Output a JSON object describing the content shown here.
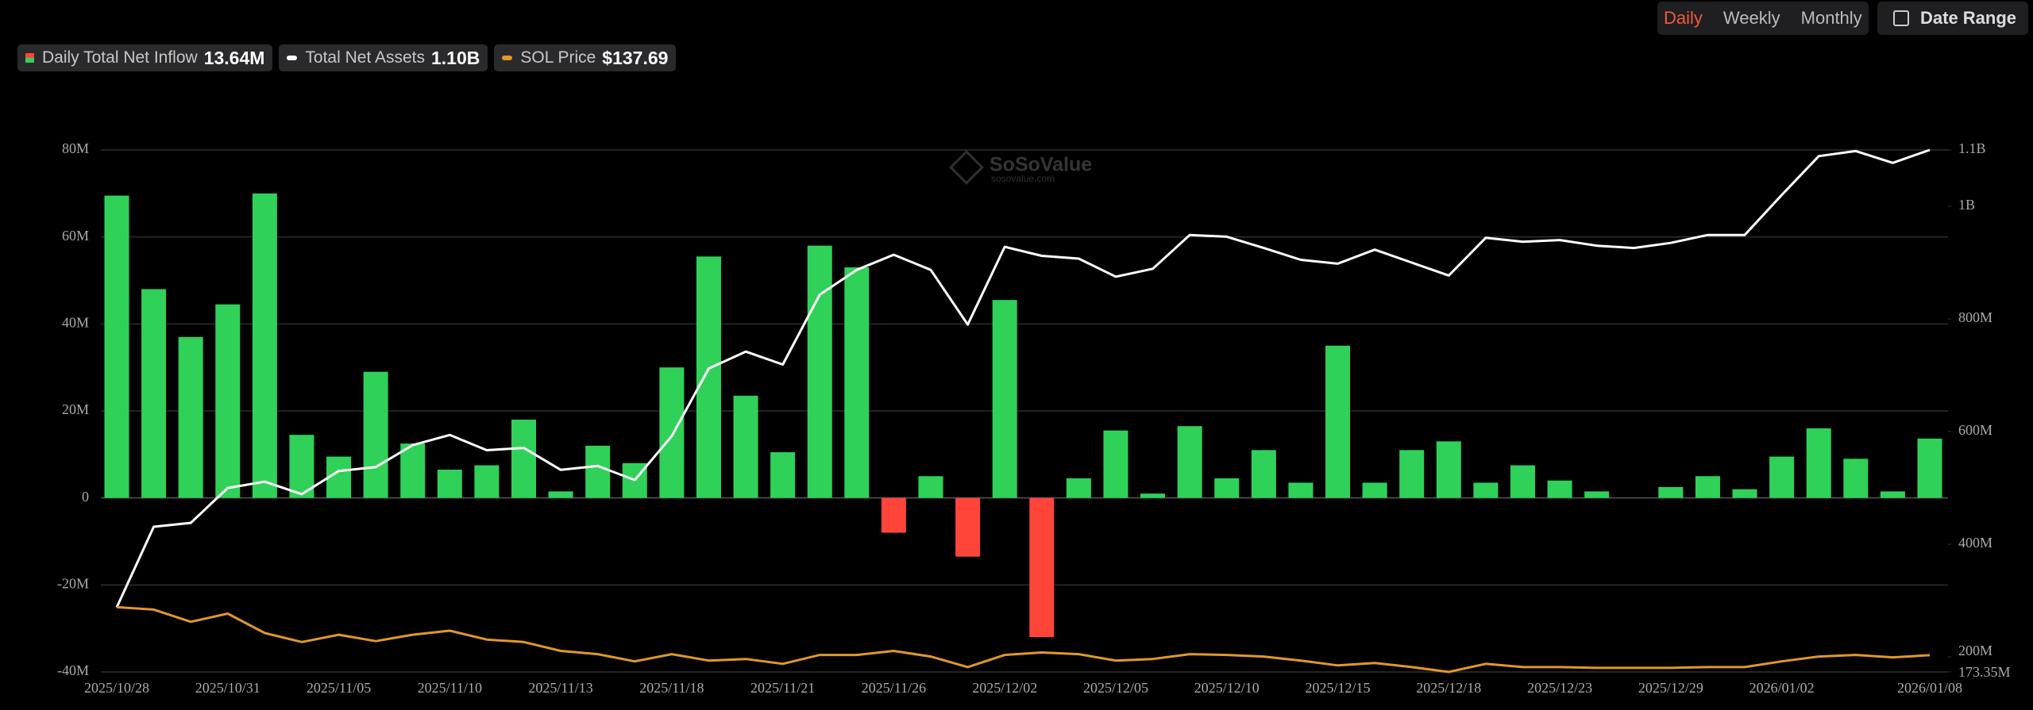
{
  "controls": {
    "periods": [
      "Daily",
      "Weekly",
      "Monthly"
    ],
    "active_period": 0,
    "date_range": "Date Range"
  },
  "watermark": {
    "brand": "SoSoValue",
    "site": "sosovalue.com"
  },
  "chart_data": {
    "type": "bar",
    "categories": [
      "2025/10/28",
      null,
      null,
      "2025/10/31",
      null,
      null,
      "2025/11/05",
      null,
      null,
      "2025/11/10",
      null,
      null,
      "2025/11/13",
      null,
      null,
      "2025/11/18",
      null,
      null,
      "2025/11/21",
      null,
      null,
      "2025/11/26",
      null,
      null,
      "2025/12/02",
      null,
      null,
      "2025/12/05",
      null,
      null,
      "2025/12/10",
      null,
      null,
      "2025/12/15",
      null,
      null,
      "2025/12/18",
      null,
      null,
      "2025/12/23",
      null,
      null,
      "2025/12/29",
      null,
      null,
      "2026/01/02",
      null,
      null,
      null,
      "2026/01/08"
    ],
    "series": [
      {
        "name": "Daily Total Net Inflow",
        "summary_label": "13.64M",
        "color": "#30d158",
        "negative_color": "#ff453a",
        "values": [
          69.5,
          48,
          37,
          44.5,
          70,
          14.5,
          9.5,
          29,
          12.5,
          6.5,
          7.5,
          18,
          1.5,
          12,
          8,
          30,
          55.5,
          23.5,
          10.5,
          58,
          53,
          -8,
          5,
          -13.5,
          45.5,
          -32,
          4.5,
          15.5,
          1,
          16.5,
          4.5,
          11,
          3.5,
          35,
          3.5,
          11,
          13,
          3.5,
          7.5,
          4,
          1.5,
          0,
          2.5,
          5,
          2,
          9.5,
          16,
          9,
          1.5,
          13.64
        ]
      },
      {
        "name": "Total Net Assets",
        "summary_label": "1.10B",
        "type": "line",
        "axis": "y2",
        "color": "#ffffff",
        "values": [
          288,
          431,
          438,
          500,
          511,
          489,
          530,
          537,
          576,
          594,
          567,
          571,
          532,
          539,
          514,
          592,
          712,
          742,
          719,
          843,
          887,
          914,
          887,
          790,
          928,
          912,
          907,
          875,
          889,
          949,
          946,
          926,
          905,
          898,
          923,
          900,
          877,
          944,
          937,
          940,
          930,
          926,
          935,
          949,
          949,
          1020,
          1089,
          1098,
          1077,
          1100
        ]
      },
      {
        "name": "SOL Price",
        "summary_label": "$137.69",
        "type": "line",
        "axis": "y3",
        "color": "#e0982a",
        "values": [
          197,
          194,
          179,
          189,
          165,
          154,
          163,
          155,
          163,
          168,
          157,
          154,
          143,
          139,
          130,
          139,
          131,
          133,
          127,
          138,
          138,
          143,
          136,
          123,
          138,
          141,
          139,
          131,
          133,
          139,
          138,
          136,
          131,
          125,
          128,
          123,
          117,
          127,
          123,
          123,
          122,
          122,
          122,
          123,
          123,
          130,
          136,
          138,
          135,
          137.69
        ]
      }
    ],
    "ylim": [
      -40,
      80
    ],
    "yticks": [
      {
        "value": -40,
        "label": "-40M"
      },
      {
        "value": -20,
        "label": "-20M"
      },
      0,
      {
        "value": 20,
        "label": "20M"
      },
      {
        "value": 40,
        "label": "40M"
      },
      {
        "value": 60,
        "label": "60M"
      },
      {
        "value": 80,
        "label": "80M"
      }
    ],
    "y2lim": [
      173.35,
      1100
    ],
    "y2ticks": [
      {
        "value": 173.35,
        "label": "173.35M"
      },
      {
        "value": 200,
        "label": "200M"
      },
      {
        "value": 400,
        "label": "400M"
      },
      {
        "value": 600,
        "label": "600M"
      },
      {
        "value": 800,
        "label": "800M"
      },
      {
        "value": 1000,
        "label": "1B"
      },
      {
        "value": 1100,
        "label": "1.1B"
      }
    ],
    "y3lim": [
      117,
      762
    ],
    "grid": true
  }
}
